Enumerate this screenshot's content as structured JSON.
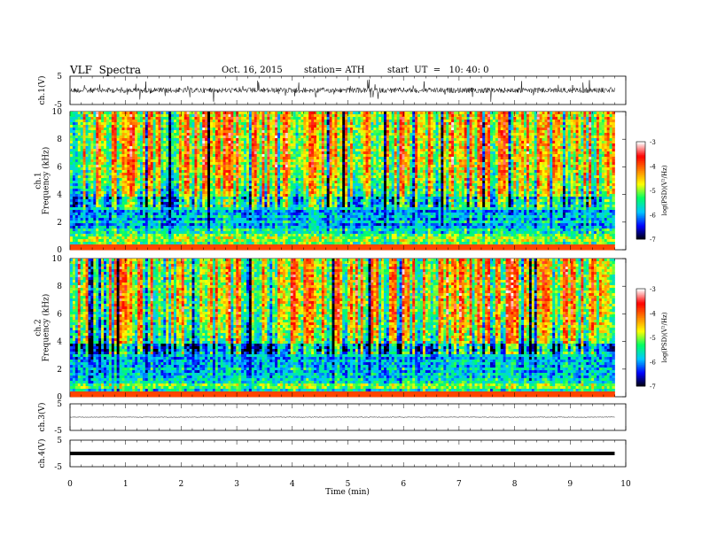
{
  "header": {
    "title": "VLF  Spectra",
    "date": "Oct. 16, 2015",
    "station": "station= ATH",
    "start": "start  UT  =   10: 40: 0"
  },
  "chart_data": [
    {
      "type": "line",
      "panel": "ch1-waveform",
      "ylabel": "ch.1(V)",
      "ylim": [
        -5,
        5
      ],
      "yticks": [
        "5",
        "-5"
      ],
      "xlim": [
        0,
        10
      ],
      "description_values": {
        "mean": 0,
        "noise_amplitude": 1.2
      }
    },
    {
      "type": "heatmap",
      "panel": "ch1-spectrogram",
      "ylabel": "ch.1\nFrequency  (kHz)",
      "ylim": [
        0,
        10
      ],
      "yticks": [
        "0",
        "2",
        "4",
        "6",
        "8",
        "10"
      ],
      "xlim": [
        0,
        10
      ],
      "colorbar": {
        "label": "log(PSD)(V²/Hz)",
        "range": [
          -7,
          -3
        ],
        "ticks": [
          "-3",
          "-4",
          "-5",
          "-6",
          "-7"
        ]
      }
    },
    {
      "type": "heatmap",
      "panel": "ch2-spectrogram",
      "ylabel": "ch.2\nFrequency  (kHz)",
      "ylim": [
        0,
        10
      ],
      "yticks": [
        "0",
        "2",
        "4",
        "6",
        "8",
        "10"
      ],
      "xlim": [
        0,
        10
      ],
      "colorbar": {
        "label": "log(PSD)(V²/Hz)",
        "range": [
          -7,
          -3
        ],
        "ticks": [
          "-3",
          "-4",
          "-5",
          "-6",
          "-7"
        ]
      }
    },
    {
      "type": "line",
      "panel": "ch3-waveform",
      "ylabel": "ch.3(V)",
      "ylim": [
        -5,
        5
      ],
      "yticks": [
        "5",
        "-5"
      ],
      "xlim": [
        0,
        10
      ],
      "description_values": {
        "mean": 0,
        "noise_amplitude": 0.1
      }
    },
    {
      "type": "line",
      "panel": "ch4-waveform",
      "ylabel": "ch.4(V)",
      "ylim": [
        -5,
        5
      ],
      "yticks": [
        "5",
        "-5"
      ],
      "xlim": [
        0,
        10
      ],
      "description_values": {
        "mean": 0,
        "noise_amplitude": 0.05
      }
    }
  ],
  "xaxis": {
    "label": "Time  (min)",
    "ticks": [
      "0",
      "1",
      "2",
      "3",
      "4",
      "5",
      "6",
      "7",
      "8",
      "9",
      "10"
    ],
    "data_end": 9.8
  },
  "colors": {
    "colormap": [
      "#000000",
      "#0000ff",
      "#00c8ff",
      "#00ff64",
      "#ffff00",
      "#ff8000",
      "#ff0000",
      "#ffffff"
    ]
  }
}
